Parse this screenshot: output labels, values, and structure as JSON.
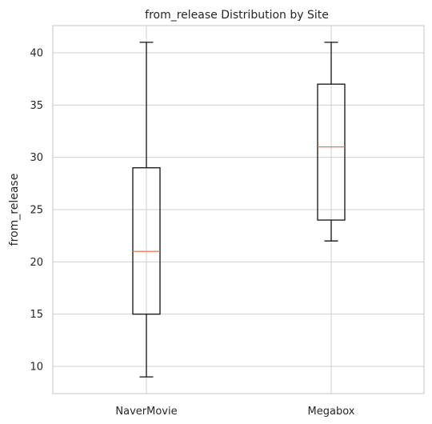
{
  "chart_data": {
    "type": "box",
    "title": "from_release Distribution by Site",
    "xlabel": "",
    "ylabel": "from_release",
    "categories": [
      "NaverMovie",
      "Megabox"
    ],
    "series": [
      {
        "category": "NaverMovie",
        "whisker_low": 9,
        "q1": 15,
        "median": 21,
        "q3": 29,
        "whisker_high": 41
      },
      {
        "category": "Megabox",
        "whisker_low": 22,
        "q1": 24,
        "median": 31,
        "q3": 37,
        "whisker_high": 41
      }
    ],
    "ylim": [
      7.4,
      42.6
    ],
    "yticks": [
      10,
      15,
      20,
      25,
      30,
      35,
      40
    ],
    "grid": true,
    "colors": {
      "box": "#111111",
      "median": "#e5774a",
      "grid": "#cfcfcf",
      "text": "#262626"
    }
  }
}
